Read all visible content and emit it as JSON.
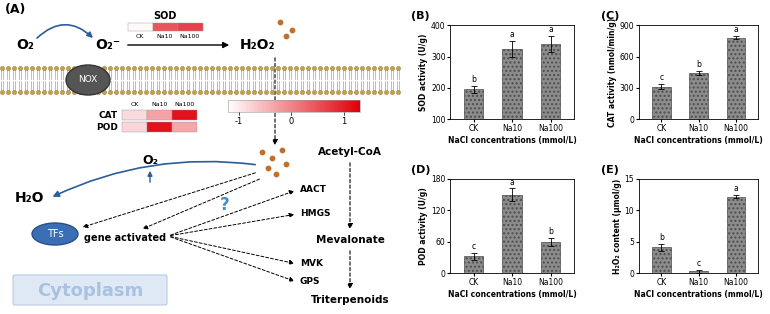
{
  "diagram": {
    "label": "(A)",
    "membrane_protein": "NOX",
    "reaction": {
      "substrate": "O₂",
      "intermediate": "O₂⁻",
      "product": "H₂O₂"
    },
    "heatmap_top": {
      "columns": [
        "CK",
        "Na10",
        "Na100"
      ],
      "rows": [
        {
          "name": "SOD",
          "values": [
            -1.15,
            0.47,
            0.66
          ]
        }
      ]
    },
    "heatmap": {
      "columns": [
        "CK",
        "Na10",
        "Na100"
      ],
      "rows": [
        {
          "name": "CAT",
          "values": [
            -0.83,
            -0.29,
            1.12
          ]
        },
        {
          "name": "POD",
          "values": [
            -0.79,
            1.12,
            -0.33
          ]
        }
      ]
    },
    "color_bar": {
      "range": [
        -1.2,
        1.3
      ],
      "ticks": [
        -1,
        0,
        1
      ],
      "colors": [
        "#ffffff",
        "#e0000b"
      ]
    },
    "scavenging": {
      "oxygen": "O₂",
      "water": "H₂O"
    },
    "pathway": [
      "Acetyl-CoA",
      "Mevalonate",
      "Triterpenoids"
    ],
    "enzymes": [
      "AACT",
      "HMGS",
      "MVK",
      "GPS"
    ],
    "regulation": {
      "factor": "TFs",
      "text": "gene activated",
      "unknown": "?"
    },
    "compartment": "Cytoplasm"
  },
  "chart_data": [
    {
      "type": "bar",
      "label": "(B)",
      "categories": [
        "CK",
        "Na10",
        "Na100"
      ],
      "values": [
        195,
        325,
        340
      ],
      "errors": [
        12,
        25,
        25
      ],
      "letters": [
        "b",
        "a",
        "a"
      ],
      "color": "#8c8c8c",
      "xlabel": "NaCl concentrations (mmol/L)",
      "ylabel": "SOD activity (U/g)",
      "ylim": [
        100,
        400
      ],
      "yticks": [
        100,
        200,
        300,
        400
      ]
    },
    {
      "type": "bar",
      "label": "(C)",
      "categories": [
        "CK",
        "Na10",
        "Na100"
      ],
      "values": [
        310,
        440,
        780
      ],
      "errors": [
        25,
        20,
        15
      ],
      "letters": [
        "c",
        "b",
        "a"
      ],
      "color": "#8c8c8c",
      "xlabel": "NaCl concentrations (mmol/L)",
      "ylabel": "CAT activity (nmol/min/g)",
      "ylim": [
        0,
        900
      ],
      "yticks": [
        0,
        300,
        600,
        900
      ]
    },
    {
      "type": "bar",
      "label": "(D)",
      "categories": [
        "CK",
        "Na10",
        "Na100"
      ],
      "values": [
        32,
        150,
        60
      ],
      "errors": [
        6,
        12,
        8
      ],
      "letters": [
        "c",
        "a",
        "b"
      ],
      "color": "#8c8c8c",
      "xlabel": "NaCl concentrations (mmol/L)",
      "ylabel": "POD activity (U/g)",
      "ylim": [
        0,
        180
      ],
      "yticks": [
        0,
        60,
        120,
        180
      ]
    },
    {
      "type": "bar",
      "label": "(E)",
      "categories": [
        "CK",
        "Na10",
        "Na100"
      ],
      "values": [
        4.1,
        0.3,
        12.2
      ],
      "errors": [
        0.5,
        0.2,
        0.3
      ],
      "letters": [
        "b",
        "c",
        "a"
      ],
      "color": "#8c8c8c",
      "xlabel": "NaCl concentrations (mmol/L)",
      "ylabel": "H₂O₂ content (μmol/g)",
      "ylim": [
        0,
        15
      ],
      "yticks": [
        0,
        5,
        10,
        15
      ]
    }
  ]
}
